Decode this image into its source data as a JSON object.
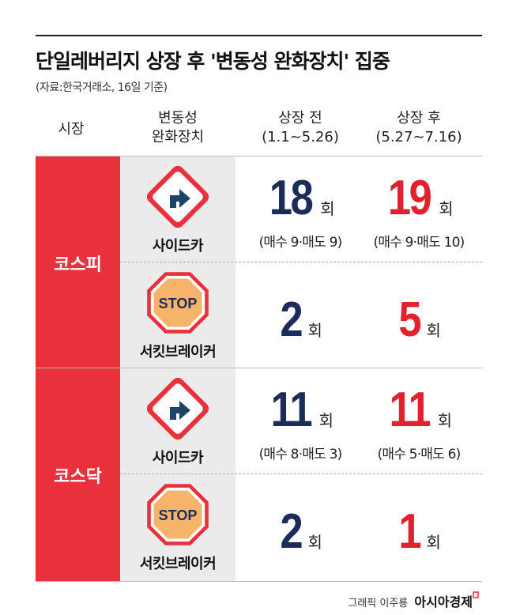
{
  "header": {
    "title": "단일레버리지 상장 후 '변동성 완화장치' 집중",
    "source": "(자료:한국거래소, 16일 기준)"
  },
  "table": {
    "headers": [
      [
        "시장"
      ],
      [
        "변동성",
        "완화장치"
      ],
      [
        "상장 전",
        "(1.1~5.26)"
      ],
      [
        "상장 후",
        "(5.27~7.16)"
      ]
    ],
    "groups": [
      {
        "market": "코스피",
        "rows": [
          {
            "device": "사이드카",
            "before": {
              "count": 18,
              "unit": "회",
              "detail": "(매수 9·매도 9)"
            },
            "after": {
              "count": 19,
              "unit": "회",
              "detail": "(매수 9·매도 10)"
            }
          },
          {
            "device": "서킷브레이커",
            "icon_text": "STOP",
            "before": {
              "count": 2,
              "unit": "회"
            },
            "after": {
              "count": 5,
              "unit": "회"
            }
          }
        ]
      },
      {
        "market": "코스닥",
        "rows": [
          {
            "device": "사이드카",
            "before": {
              "count": 11,
              "unit": "회",
              "detail": "(매수 8·매도 3)"
            },
            "after": {
              "count": 11,
              "unit": "회",
              "detail": "(매수 5·매도 6)"
            }
          },
          {
            "device": "서킷브레이커",
            "icon_text": "STOP",
            "before": {
              "count": 2,
              "unit": "회"
            },
            "after": {
              "count": 1,
              "unit": "회"
            }
          }
        ]
      }
    ]
  },
  "footer": {
    "credit": "그래픽 이주룡",
    "brand": "아시아경제"
  }
}
